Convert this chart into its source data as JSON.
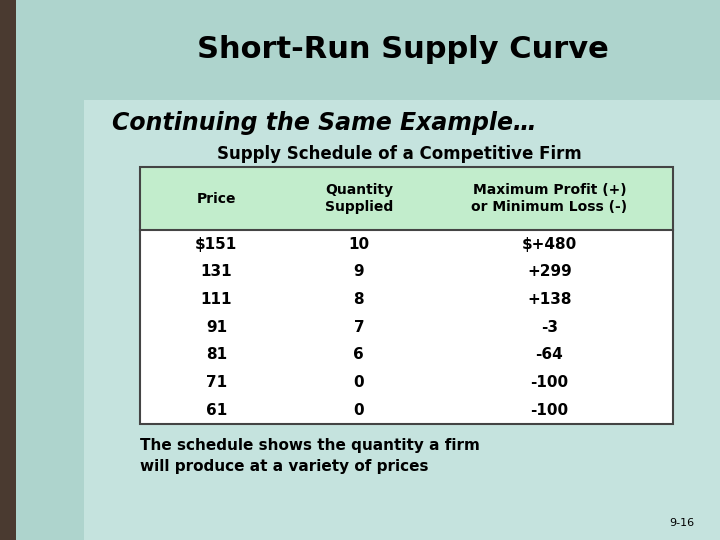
{
  "title": "Short-Run Supply Curve",
  "subtitle": "Continuing the Same Example…",
  "table_title": "Supply Schedule of a Competitive Firm",
  "header_row": [
    "Price",
    "Quantity\nSupplied",
    "Maximum Profit (+)\nor Minimum Loss (-)"
  ],
  "data_rows": [
    [
      "$151",
      "10",
      "$+480"
    ],
    [
      "131",
      "9",
      "+299"
    ],
    [
      "111",
      "8",
      "+138"
    ],
    [
      "91",
      "7",
      "-3"
    ],
    [
      "81",
      "6",
      "-64"
    ],
    [
      "71",
      "0",
      "-100"
    ],
    [
      "61",
      "0",
      "-100"
    ]
  ],
  "footer": "The schedule shows the quantity a firm\nwill produce at a variety of prices",
  "page_num": "9-16",
  "slide_bg": "#c5e3de",
  "title_bar_color": "#aed4cd",
  "content_bg": "#c5e3de",
  "left_panel_dark": "#5a8a82",
  "left_panel_light": "#aed4cd",
  "table_header_bg": "#c2edcc",
  "table_border_color": "#444444",
  "title_fontsize": 22,
  "subtitle_fontsize": 17,
  "table_title_fontsize": 12,
  "header_fontsize": 10,
  "data_fontsize": 11,
  "footer_fontsize": 11
}
